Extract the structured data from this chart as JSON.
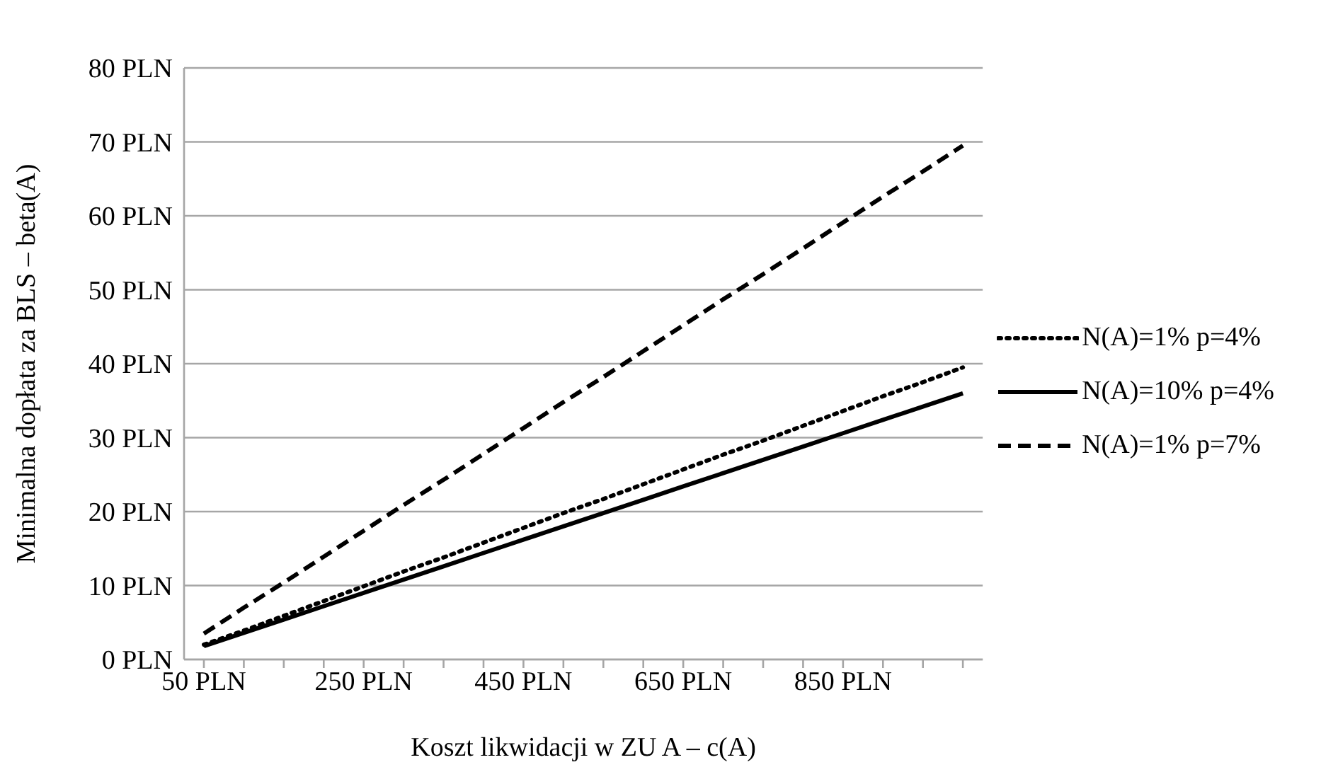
{
  "chart_data": {
    "type": "line",
    "xlabel": "Koszt likwidacji w ZU A – c(A)",
    "ylabel": "Minimalna dopłata za BLS – beta(A)",
    "categories": [
      "50 PLN",
      null,
      null,
      null,
      "250 PLN",
      null,
      null,
      null,
      "450 PLN",
      null,
      null,
      null,
      "650 PLN",
      null,
      null,
      null,
      "850 PLN",
      null,
      null,
      null
    ],
    "series": [
      {
        "name": "N(A)=1% p=4%",
        "color": "#000000",
        "line_style": "dotted",
        "values": [
          2,
          3.9,
          5.9,
          7.9,
          9.9,
          11.9,
          13.8,
          15.8,
          17.8,
          19.8,
          21.7,
          23.7,
          25.7,
          27.7,
          29.6,
          31.6,
          33.6,
          35.6,
          37.5,
          39.5
        ]
      },
      {
        "name": "N(A)=10% p=4%",
        "color": "#000000",
        "line_style": "solid",
        "values": [
          1.8,
          3.6,
          5.4,
          7.2,
          9,
          10.8,
          12.6,
          14.4,
          16.2,
          18,
          19.8,
          21.6,
          23.4,
          25.2,
          27,
          28.8,
          30.6,
          32.4,
          34.2,
          36
        ]
      },
      {
        "name": "N(A)=1% p=7%",
        "color": "#000000",
        "line_style": "dashed",
        "values": [
          3.5,
          7,
          10.4,
          13.9,
          17.4,
          20.9,
          24.3,
          27.8,
          31.3,
          34.8,
          38.2,
          41.7,
          45.2,
          48.7,
          52.1,
          55.6,
          59.1,
          62.6,
          66,
          69.5
        ]
      }
    ],
    "ylim": [
      0,
      80
    ],
    "yticks": [
      {
        "value": 0,
        "label": "0 PLN"
      },
      {
        "value": 10,
        "label": "10 PLN"
      },
      {
        "value": 20,
        "label": "20 PLN"
      },
      {
        "value": 30,
        "label": "30 PLN"
      },
      {
        "value": 40,
        "label": "40 PLN"
      },
      {
        "value": 50,
        "label": "50 PLN"
      },
      {
        "value": 60,
        "label": "60 PLN"
      },
      {
        "value": 70,
        "label": "70 PLN"
      },
      {
        "value": 80,
        "label": "80 PLN"
      }
    ],
    "grid": "y",
    "legend": "right",
    "marker": "none"
  }
}
